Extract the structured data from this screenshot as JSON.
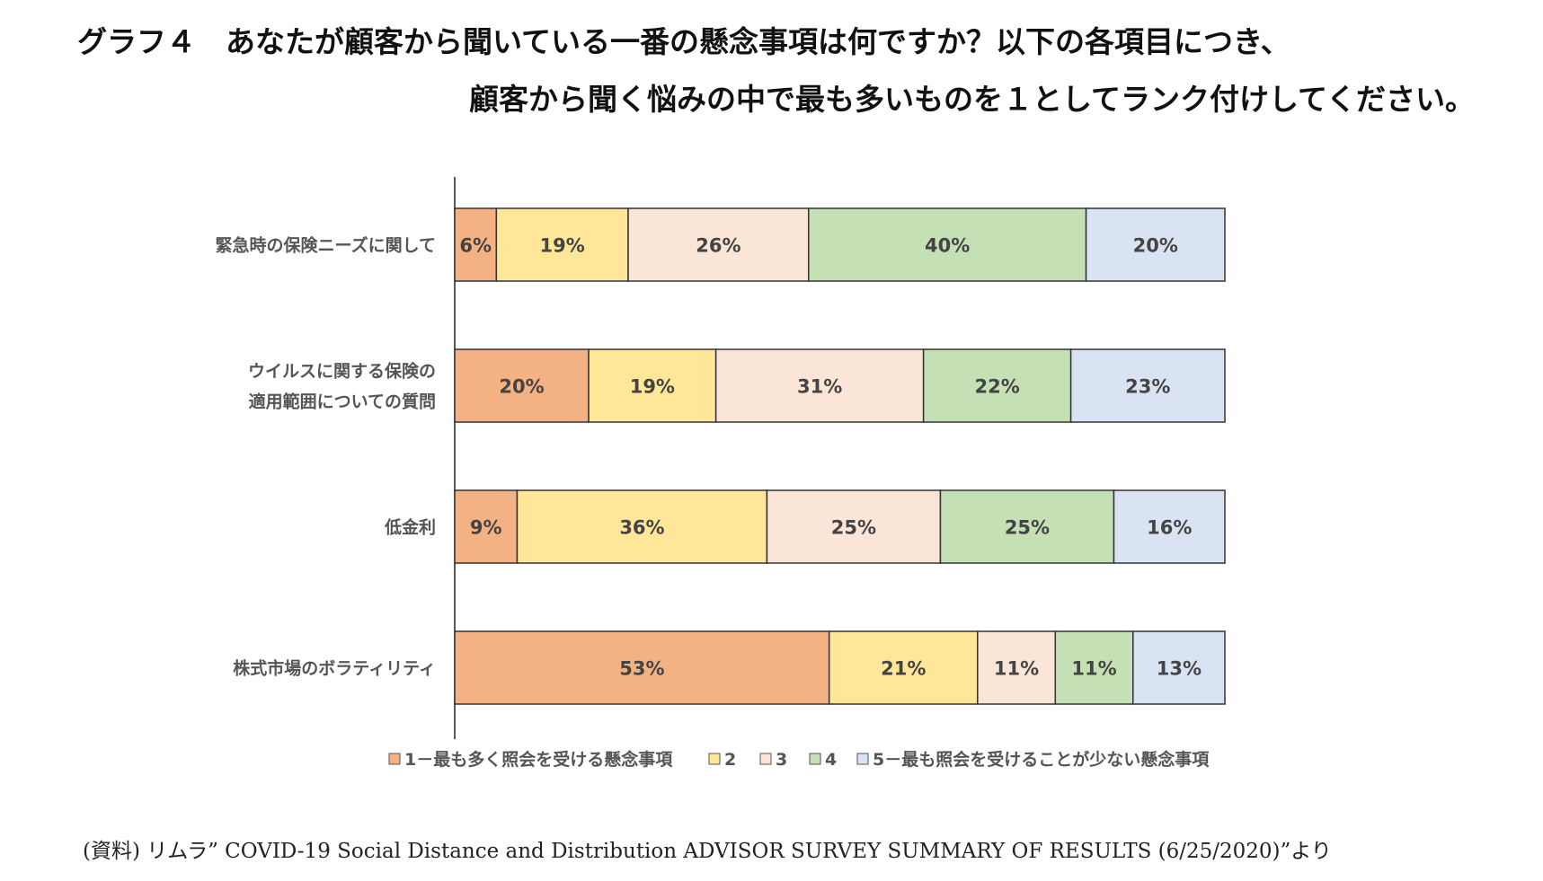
{
  "title": {
    "line1": "グラフ４　あなたが顧客から聞いている一番の懸念事項は何ですか？以下の各項目につき、",
    "line2": "顧客から聞く悩みの中で最も多いものを１としてランク付けしてください。"
  },
  "source": "(資料) リムラ” COVID-19 Social Distance and Distribution ADVISOR SURVEY SUMMARY OF RESULTS (6/25/2020)”より",
  "chart_data": {
    "type": "bar",
    "orientation": "horizontal",
    "stacked": "100%",
    "categories": [
      [
        "緊急時の保険ニーズに関して"
      ],
      [
        "ウイルスに関する保険の",
        "適用範囲についての質問"
      ],
      [
        "低金利"
      ],
      [
        "株式市場のボラティリティ"
      ]
    ],
    "series": [
      {
        "name": "1－最も多く照会を受ける懸念事項",
        "color": "#F4B183",
        "values": [
          6,
          20,
          9,
          53
        ]
      },
      {
        "name": "2",
        "color": "#FFE699",
        "values": [
          19,
          19,
          36,
          21
        ]
      },
      {
        "name": "3",
        "color": "#FBE5D6",
        "values": [
          26,
          31,
          25,
          11
        ]
      },
      {
        "name": "4",
        "color": "#C5E0B4",
        "values": [
          40,
          22,
          25,
          11
        ]
      },
      {
        "name": "5－最も照会を受けることが少ない懸念事項",
        "color": "#DAE3F3",
        "values": [
          20,
          23,
          16,
          13
        ]
      }
    ],
    "value_suffix": "%",
    "legend_position": "bottom",
    "grid": false
  }
}
